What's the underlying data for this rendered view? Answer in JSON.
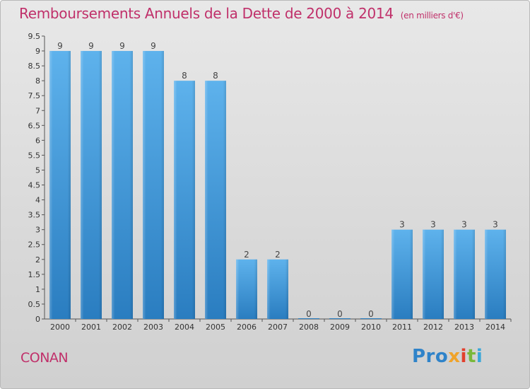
{
  "title": "Remboursements Annuels de la Dette de 2000 à 2014",
  "unit": "(en milliers d'€)",
  "commune": "CONAN",
  "logo": {
    "p1": "Pro",
    "p2": "x",
    "p3": "i",
    "p4": "t",
    "p5": "i"
  },
  "colors": {
    "bar_top": "#5eb2ec",
    "bar_bottom": "#2a7dc0",
    "title": "#c0306a"
  },
  "chart_data": {
    "type": "bar",
    "title": "Remboursements Annuels de la Dette de 2000 à 2014",
    "xlabel": "",
    "ylabel": "",
    "ylim": [
      0,
      9.5
    ],
    "yticks": [
      "0",
      "0.5",
      "1",
      "1.5",
      "2",
      "2.5",
      "3",
      "3.5",
      "4",
      "4.5",
      "5",
      "5.5",
      "6",
      "6.5",
      "7",
      "7.5",
      "8",
      "8.5",
      "9",
      "9.5"
    ],
    "categories": [
      "2000",
      "2001",
      "2002",
      "2003",
      "2004",
      "2005",
      "2006",
      "2007",
      "2008",
      "2009",
      "2010",
      "2011",
      "2012",
      "2013",
      "2014"
    ],
    "values": [
      9,
      9,
      9,
      9,
      8,
      8,
      2,
      2,
      0,
      0,
      0,
      3,
      3,
      3,
      3
    ],
    "grid": false,
    "legend": "none"
  }
}
